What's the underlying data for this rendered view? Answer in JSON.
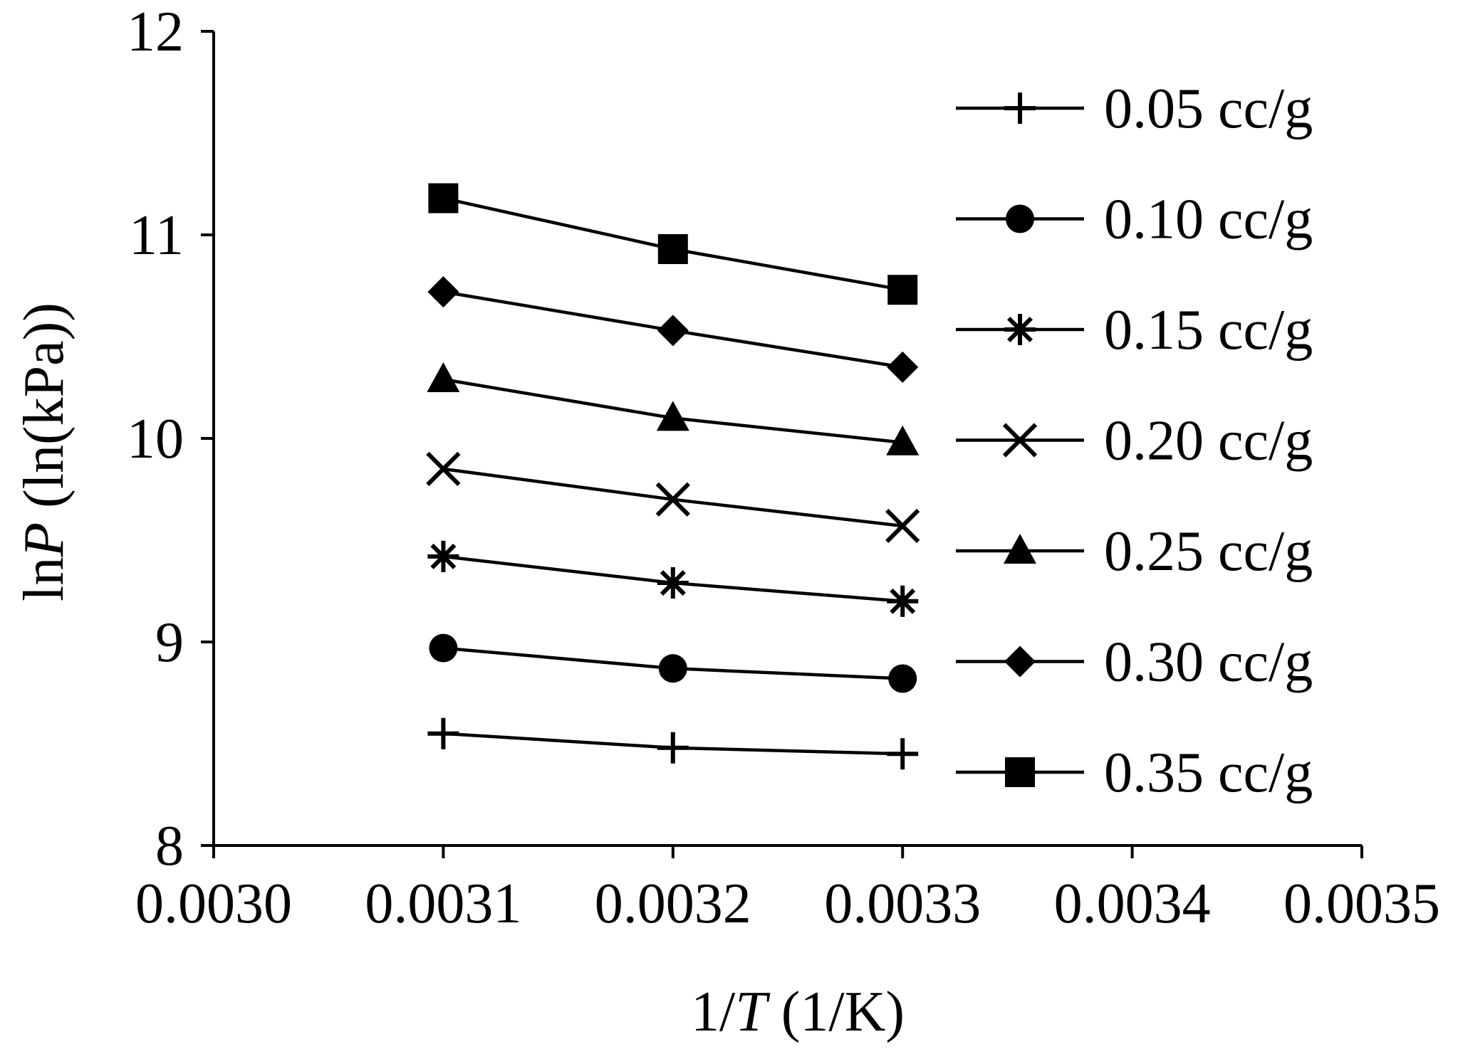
{
  "chart_data": {
    "type": "line",
    "title": "",
    "xlabel": {
      "prefix": "1/",
      "italic": "T",
      "suffix": " (1/K)"
    },
    "ylabel": {
      "prefix": "ln",
      "italic": "P",
      "suffix": " (ln(kPa))"
    },
    "xlim": [
      0.003,
      0.0035
    ],
    "ylim": [
      8,
      12
    ],
    "x_ticks": [
      0.003,
      0.0031,
      0.0032,
      0.0033,
      0.0034,
      0.0035
    ],
    "x_tick_labels": [
      "0.0030",
      "0.0031",
      "0.0032",
      "0.0033",
      "0.0034",
      "0.0035"
    ],
    "y_ticks": [
      8,
      9,
      10,
      11,
      12
    ],
    "y_tick_labels": [
      "8",
      "9",
      "10",
      "11",
      "12"
    ],
    "grid": false,
    "legend_position": "right",
    "x": [
      0.0031,
      0.0032,
      0.0033
    ],
    "series": [
      {
        "name": "0.05 cc/g",
        "marker": "plus",
        "values": [
          8.55,
          8.48,
          8.45
        ]
      },
      {
        "name": "0.10 cc/g",
        "marker": "circle",
        "values": [
          8.97,
          8.87,
          8.82
        ]
      },
      {
        "name": "0.15 cc/g",
        "marker": "asterisk",
        "values": [
          9.42,
          9.29,
          9.2
        ]
      },
      {
        "name": "0.20 cc/g",
        "marker": "x",
        "values": [
          9.85,
          9.7,
          9.57
        ]
      },
      {
        "name": "0.25 cc/g",
        "marker": "triangle",
        "values": [
          10.29,
          10.1,
          9.98
        ]
      },
      {
        "name": "0.30 cc/g",
        "marker": "diamond",
        "values": [
          10.72,
          10.53,
          10.35
        ]
      },
      {
        "name": "0.35 cc/g",
        "marker": "square",
        "values": [
          11.18,
          10.93,
          10.73
        ]
      }
    ]
  }
}
